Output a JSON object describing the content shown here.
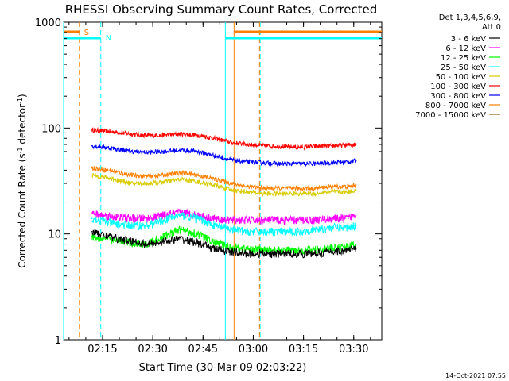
{
  "chart_data": {
    "type": "line",
    "title": "RHESSI Observing Summary Count Rates, Corrected",
    "xlabel": "Start Time (30-Mar-09 02:03:22)",
    "ylabel": "Corrected Count Rate (s^-1 detector^-1)",
    "x_unit": "minutes after 02:03:22",
    "xlim": [
      0,
      95
    ],
    "ylim": [
      1,
      1000
    ],
    "y_scale": "log",
    "x_ticks": [
      {
        "x": 11.63,
        "label": "02:15"
      },
      {
        "x": 26.63,
        "label": "02:30"
      },
      {
        "x": 41.63,
        "label": "02:45"
      },
      {
        "x": 56.63,
        "label": "03:00"
      },
      {
        "x": 71.63,
        "label": "03:15"
      },
      {
        "x": 86.63,
        "label": "03:30"
      }
    ],
    "y_ticks": [
      {
        "y": 1,
        "label": "1"
      },
      {
        "y": 10,
        "label": "10"
      },
      {
        "y": 100,
        "label": "100"
      },
      {
        "y": 1000,
        "label": "1000"
      }
    ],
    "grid": false,
    "legend": {
      "position": "right",
      "header": [
        "Det 1,3,4,5,6,9,",
        "Att 0"
      ],
      "entries": [
        {
          "label": "3 - 6 keV",
          "color": "#000000"
        },
        {
          "label": "6 - 12 keV",
          "color": "#ff00ff"
        },
        {
          "label": "12 - 25 keV",
          "color": "#00ff00"
        },
        {
          "label": "25 - 50 keV",
          "color": "#00ffff"
        },
        {
          "label": "50 - 100 keV",
          "color": "#d8cc00"
        },
        {
          "label": "100 - 300 keV",
          "color": "#ff0000"
        },
        {
          "label": "300 - 800 keV",
          "color": "#0000ff"
        },
        {
          "label": "800 - 7000 keV",
          "color": "#ff8000"
        },
        {
          "label": "7000 - 15000 keV",
          "color": "#8b6914"
        }
      ]
    },
    "x": [
      8.5,
      15,
      20,
      25,
      30,
      35,
      40,
      45,
      50,
      55,
      60,
      65,
      70,
      75,
      80,
      85,
      87.3
    ],
    "series": [
      {
        "name": "100 - 300 keV",
        "color": "#ff0000",
        "values": [
          96,
          92,
          88,
          85,
          86,
          88,
          86,
          80,
          73,
          70,
          68,
          67,
          66,
          67,
          68,
          69,
          70
        ]
      },
      {
        "name": "300 - 800 keV",
        "color": "#0000ff",
        "values": [
          68,
          64,
          60,
          59,
          60,
          62,
          60,
          55,
          50,
          48,
          47,
          46,
          46,
          46,
          47,
          48,
          49
        ]
      },
      {
        "name": "800 - 7000 keV",
        "color": "#ff8000",
        "values": [
          42,
          39,
          36,
          35,
          36,
          38,
          36,
          33,
          30,
          28,
          27,
          27,
          27,
          27,
          28,
          28,
          29
        ]
      },
      {
        "name": "50 - 100 keV",
        "color": "#d8cc00",
        "values": [
          36,
          33,
          30,
          30,
          31,
          33,
          31,
          29,
          26,
          25,
          24,
          24,
          24,
          24,
          25,
          25,
          26
        ]
      },
      {
        "name": "6 - 12 keV",
        "color": "#ff00ff",
        "values": [
          15.5,
          14.5,
          14,
          14,
          15,
          16,
          15,
          14,
          13.5,
          13.5,
          13.5,
          13.5,
          13.5,
          13.5,
          14,
          14,
          15
        ]
      },
      {
        "name": "25 - 50 keV",
        "color": "#00ffff",
        "values": [
          14,
          12.5,
          12,
          12,
          13.5,
          15,
          14,
          12,
          11,
          10.5,
          10.5,
          10.5,
          10.5,
          11,
          11.5,
          11.5,
          12
        ]
      },
      {
        "name": "12 - 25 keV",
        "color": "#00ff00",
        "values": [
          9.5,
          8.8,
          8.2,
          8,
          9.5,
          11,
          10,
          8.3,
          7.5,
          7.2,
          7,
          7,
          7,
          7.1,
          7.3,
          7.6,
          8
        ]
      },
      {
        "name": "3 - 6 keV",
        "color": "#000000",
        "values": [
          10.5,
          9.2,
          8.5,
          8,
          8.5,
          9,
          8.2,
          7.2,
          6.8,
          6.5,
          6.5,
          6.5,
          6.5,
          6.5,
          6.8,
          7,
          7.2
        ]
      }
    ],
    "annotations": {
      "markers": [
        {
          "x": 4.7,
          "color": "#ff8000",
          "style": "dashed"
        },
        {
          "x": 50.9,
          "color": "#ff8000",
          "style": "solid"
        },
        {
          "x": 58.5,
          "color": "#ff8000",
          "style": "dashed"
        }
      ],
      "markers_cyan": [
        {
          "x": 0,
          "color": "#00ffff",
          "style": "solid"
        },
        {
          "x": 11.1,
          "color": "#00ffff",
          "style": "dashed"
        },
        {
          "x": 48.3,
          "color": "#00ffff",
          "style": "solid"
        },
        {
          "x": 58.7,
          "color": "#00ffff",
          "style": "dashed"
        }
      ],
      "saa_label": "S",
      "night_label": "N"
    }
  },
  "footer": {
    "timestamp": "14-Oct-2021 07:55"
  }
}
